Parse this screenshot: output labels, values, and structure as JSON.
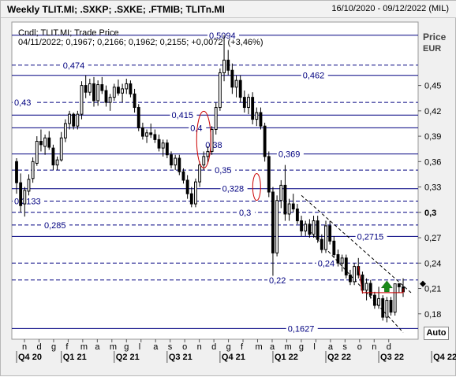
{
  "header": {
    "title": "Weekly TLIT.MI; .SXKP; .SXKE; .FTMIB; TLITn.MI",
    "date_range": "16/10/2020 - 09/12/2022 (MIL)"
  },
  "legend": {
    "line1": "Cndl; TLIT.MI; Trade Price",
    "line2": "04/11/2022; 0,1967; 0,2166; 0,1962; 0,2155; +0,0072; (+3,46%)"
  },
  "axis": {
    "price_label": "Price",
    "currency_label": "EUR",
    "auto_label": "Auto"
  },
  "colors": {
    "up_candle": "#ffffff",
    "down_candle": "#000000",
    "levels": "#000080",
    "ellipse": "#cc0000",
    "arrow": "#1a8a1a",
    "current_price": "#000000"
  },
  "chart_data": {
    "type": "candlestick",
    "ylim": [
      0.15,
      0.525
    ],
    "y_ticks": [
      {
        "v": 0.45,
        "label": "0,45",
        "bold": false
      },
      {
        "v": 0.42,
        "label": "0,42",
        "bold": false
      },
      {
        "v": 0.39,
        "label": "0,39",
        "bold": false
      },
      {
        "v": 0.36,
        "label": "0,36",
        "bold": false
      },
      {
        "v": 0.33,
        "label": "0,33",
        "bold": false
      },
      {
        "v": 0.3,
        "label": "0,3",
        "bold": true
      },
      {
        "v": 0.27,
        "label": "0,27",
        "bold": false
      },
      {
        "v": 0.24,
        "label": "0,24",
        "bold": false
      },
      {
        "v": 0.21,
        "label": "0,21",
        "bold": false
      },
      {
        "v": 0.18,
        "label": "0,18",
        "bold": false
      }
    ],
    "month_labels": [
      "n",
      "d",
      "g",
      "f",
      "m",
      "a",
      "m",
      "g",
      "l",
      "a",
      "s",
      "o",
      "n",
      "d",
      "g",
      "f",
      "m",
      "a",
      "m",
      "g",
      "l",
      "a",
      "s",
      "o",
      "n",
      "d"
    ],
    "quarter_labels": [
      {
        "label": "Q4 20",
        "start": 0
      },
      {
        "label": "Q1 21",
        "start": 11
      },
      {
        "label": "Q2 21",
        "start": 24
      },
      {
        "label": "Q3 21",
        "start": 37
      },
      {
        "label": "Q4 21",
        "start": 50
      },
      {
        "label": "Q1 22",
        "start": 63
      },
      {
        "label": "Q2 22",
        "start": 76
      },
      {
        "label": "Q3 22",
        "start": 89
      },
      {
        "label": "Q4 22",
        "start": 102
      }
    ],
    "levels": [
      {
        "v": 0.5094,
        "label": "0,5094",
        "style": "solid",
        "label_pos": 0.52
      },
      {
        "v": 0.474,
        "label": "0,474",
        "style": "dashed",
        "label_pos": 0.13
      },
      {
        "v": 0.462,
        "label": "0,462",
        "style": "solid",
        "label_pos": 0.77
      },
      {
        "v": 0.43,
        "label": "0,43",
        "style": "dashed",
        "label_pos": 0.0
      },
      {
        "v": 0.415,
        "label": "0,415",
        "style": "solid",
        "label_pos": 0.42
      },
      {
        "v": 0.4,
        "label": "0,4",
        "style": "solid",
        "label_pos": 0.47
      },
      {
        "v": 0.38,
        "label": "0,38",
        "style": "none",
        "label_pos": 0.51
      },
      {
        "v": 0.369,
        "label": "0,369",
        "style": "solid",
        "label_pos": 0.705
      },
      {
        "v": 0.35,
        "label": "0,35",
        "style": "dashed",
        "label_pos": 0.535
      },
      {
        "v": 0.328,
        "label": "0,328",
        "style": "solid",
        "label_pos": 0.555
      },
      {
        "v": 0.3133,
        "label": "0,3133",
        "style": "dashed",
        "label_pos": 0.0
      },
      {
        "v": 0.3,
        "label": "0,3",
        "style": "dashed",
        "label_pos": 0.6
      },
      {
        "v": 0.285,
        "label": "0,285",
        "style": "dashed",
        "label_pos": 0.08
      },
      {
        "v": 0.2715,
        "label": "0,2715",
        "style": "solid",
        "label_pos": 0.915
      },
      {
        "v": 0.24,
        "label": "0,24",
        "style": "dashed",
        "label_pos": 0.81
      },
      {
        "v": 0.22,
        "label": "0,22",
        "style": "dashed",
        "label_pos": 0.68
      },
      {
        "v": 0.1627,
        "label": "0,1627",
        "style": "solid",
        "label_pos": 0.73
      }
    ],
    "current_price": 0.2155,
    "ohlc": [
      [
        0.36,
        0.364,
        0.322,
        0.335
      ],
      [
        0.335,
        0.346,
        0.3,
        0.308
      ],
      [
        0.31,
        0.33,
        0.295,
        0.326
      ],
      [
        0.325,
        0.345,
        0.32,
        0.339
      ],
      [
        0.34,
        0.365,
        0.335,
        0.36
      ],
      [
        0.358,
        0.39,
        0.355,
        0.384
      ],
      [
        0.384,
        0.398,
        0.372,
        0.38
      ],
      [
        0.378,
        0.392,
        0.368,
        0.388
      ],
      [
        0.388,
        0.396,
        0.374,
        0.377
      ],
      [
        0.376,
        0.38,
        0.35,
        0.356
      ],
      [
        0.356,
        0.366,
        0.35,
        0.362
      ],
      [
        0.362,
        0.395,
        0.36,
        0.388
      ],
      [
        0.388,
        0.41,
        0.383,
        0.405
      ],
      [
        0.405,
        0.42,
        0.398,
        0.416
      ],
      [
        0.416,
        0.418,
        0.398,
        0.402
      ],
      [
        0.402,
        0.42,
        0.398,
        0.416
      ],
      [
        0.416,
        0.455,
        0.41,
        0.45
      ],
      [
        0.45,
        0.462,
        0.435,
        0.442
      ],
      [
        0.442,
        0.458,
        0.438,
        0.452
      ],
      [
        0.452,
        0.46,
        0.425,
        0.432
      ],
      [
        0.432,
        0.456,
        0.426,
        0.451
      ],
      [
        0.451,
        0.46,
        0.44,
        0.444
      ],
      [
        0.444,
        0.45,
        0.425,
        0.43
      ],
      [
        0.43,
        0.44,
        0.42,
        0.436
      ],
      [
        0.436,
        0.452,
        0.432,
        0.448
      ],
      [
        0.448,
        0.457,
        0.438,
        0.441
      ],
      [
        0.441,
        0.452,
        0.43,
        0.446
      ],
      [
        0.446,
        0.458,
        0.44,
        0.452
      ],
      [
        0.452,
        0.456,
        0.436,
        0.44
      ],
      [
        0.44,
        0.446,
        0.418,
        0.424
      ],
      [
        0.424,
        0.428,
        0.396,
        0.4
      ],
      [
        0.4,
        0.406,
        0.386,
        0.39
      ],
      [
        0.39,
        0.398,
        0.382,
        0.394
      ],
      [
        0.394,
        0.405,
        0.388,
        0.392
      ],
      [
        0.392,
        0.398,
        0.382,
        0.386
      ],
      [
        0.386,
        0.392,
        0.372,
        0.376
      ],
      [
        0.376,
        0.386,
        0.366,
        0.382
      ],
      [
        0.382,
        0.386,
        0.364,
        0.368
      ],
      [
        0.368,
        0.372,
        0.352,
        0.356
      ],
      [
        0.356,
        0.368,
        0.35,
        0.364
      ],
      [
        0.364,
        0.368,
        0.344,
        0.348
      ],
      [
        0.348,
        0.352,
        0.334,
        0.338
      ],
      [
        0.338,
        0.344,
        0.316,
        0.322
      ],
      [
        0.322,
        0.33,
        0.306,
        0.31
      ],
      [
        0.31,
        0.34,
        0.306,
        0.336
      ],
      [
        0.336,
        0.36,
        0.33,
        0.356
      ],
      [
        0.356,
        0.372,
        0.35,
        0.366
      ],
      [
        0.366,
        0.378,
        0.358,
        0.372
      ],
      [
        0.372,
        0.402,
        0.368,
        0.398
      ],
      [
        0.398,
        0.43,
        0.392,
        0.424
      ],
      [
        0.424,
        0.47,
        0.42,
        0.465
      ],
      [
        0.465,
        0.5094,
        0.455,
        0.48
      ],
      [
        0.48,
        0.492,
        0.462,
        0.468
      ],
      [
        0.468,
        0.476,
        0.44,
        0.448
      ],
      [
        0.448,
        0.462,
        0.436,
        0.456
      ],
      [
        0.456,
        0.462,
        0.43,
        0.436
      ],
      [
        0.436,
        0.444,
        0.418,
        0.424
      ],
      [
        0.424,
        0.44,
        0.416,
        0.436
      ],
      [
        0.436,
        0.442,
        0.404,
        0.41
      ],
      [
        0.41,
        0.424,
        0.402,
        0.418
      ],
      [
        0.418,
        0.424,
        0.398,
        0.402
      ],
      [
        0.402,
        0.406,
        0.36,
        0.366
      ],
      [
        0.366,
        0.372,
        0.318,
        0.324
      ],
      [
        0.324,
        0.33,
        0.225,
        0.252
      ],
      [
        0.252,
        0.32,
        0.248,
        0.314
      ],
      [
        0.314,
        0.338,
        0.305,
        0.332
      ],
      [
        0.332,
        0.356,
        0.29,
        0.298
      ],
      [
        0.298,
        0.316,
        0.29,
        0.31
      ],
      [
        0.31,
        0.322,
        0.3,
        0.304
      ],
      [
        0.304,
        0.31,
        0.286,
        0.29
      ],
      [
        0.29,
        0.296,
        0.272,
        0.278
      ],
      [
        0.278,
        0.29,
        0.272,
        0.286
      ],
      [
        0.286,
        0.292,
        0.27,
        0.274
      ],
      [
        0.274,
        0.296,
        0.27,
        0.29
      ],
      [
        0.29,
        0.296,
        0.264,
        0.268
      ],
      [
        0.268,
        0.274,
        0.252,
        0.256
      ],
      [
        0.256,
        0.29,
        0.252,
        0.284
      ],
      [
        0.284,
        0.29,
        0.262,
        0.266
      ],
      [
        0.266,
        0.272,
        0.246,
        0.25
      ],
      [
        0.25,
        0.256,
        0.236,
        0.24
      ],
      [
        0.24,
        0.25,
        0.23,
        0.246
      ],
      [
        0.246,
        0.25,
        0.222,
        0.226
      ],
      [
        0.226,
        0.232,
        0.214,
        0.218
      ],
      [
        0.218,
        0.24,
        0.214,
        0.236
      ],
      [
        0.236,
        0.246,
        0.222,
        0.226
      ],
      [
        0.226,
        0.23,
        0.204,
        0.208
      ],
      [
        0.208,
        0.222,
        0.196,
        0.216
      ],
      [
        0.216,
        0.22,
        0.198,
        0.202
      ],
      [
        0.202,
        0.206,
        0.186,
        0.19
      ],
      [
        0.19,
        0.212,
        0.186,
        0.198
      ],
      [
        0.198,
        0.202,
        0.172,
        0.176
      ],
      [
        0.176,
        0.2,
        0.17,
        0.196
      ],
      [
        0.196,
        0.2,
        0.178,
        0.182
      ],
      [
        0.182,
        0.212,
        0.178,
        0.2155
      ],
      [
        0.2155,
        0.2166,
        0.205,
        0.212
      ],
      [
        0.212,
        0.222,
        0.2,
        0.206
      ]
    ]
  }
}
